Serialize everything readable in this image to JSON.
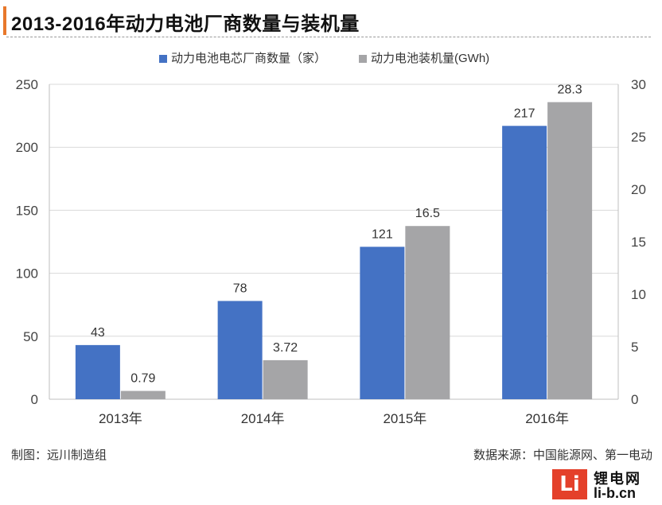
{
  "header": {
    "title": "2013-2016年动力电池厂商数量与装机量"
  },
  "footer": {
    "left": "制图：远川制造组",
    "right": "数据来源：中国能源网、第一电动"
  },
  "watermark": {
    "mark": "Li",
    "name": "锂电网",
    "url": "li-b.cn"
  },
  "colors": {
    "series1": "#4472c4",
    "series2": "#a5a5a7",
    "accent": "#e8782b"
  },
  "chart_data": {
    "type": "bar",
    "title": "2013-2016年动力电池厂商数量与装机量",
    "categories": [
      "2013年",
      "2014年",
      "2015年",
      "2016年"
    ],
    "series": [
      {
        "name": "动力电池电芯厂商数量（家）",
        "axis": "left",
        "values": [
          43,
          78,
          121,
          217
        ],
        "labels": [
          "43",
          "78",
          "121",
          "217"
        ]
      },
      {
        "name": "动力电池装机量(GWh)",
        "axis": "right",
        "values": [
          0.79,
          3.72,
          16.5,
          28.3
        ],
        "labels": [
          "0.79",
          "3.72",
          "16.5",
          "28.3"
        ]
      }
    ],
    "ylim_left": [
      0,
      250
    ],
    "yticks_left": [
      "0",
      "50",
      "100",
      "150",
      "200",
      "250"
    ],
    "ylim_right": [
      0,
      30
    ],
    "yticks_right": [
      "0",
      "5",
      "10",
      "15",
      "20",
      "25",
      "30"
    ],
    "grid": true,
    "legend": "top"
  }
}
